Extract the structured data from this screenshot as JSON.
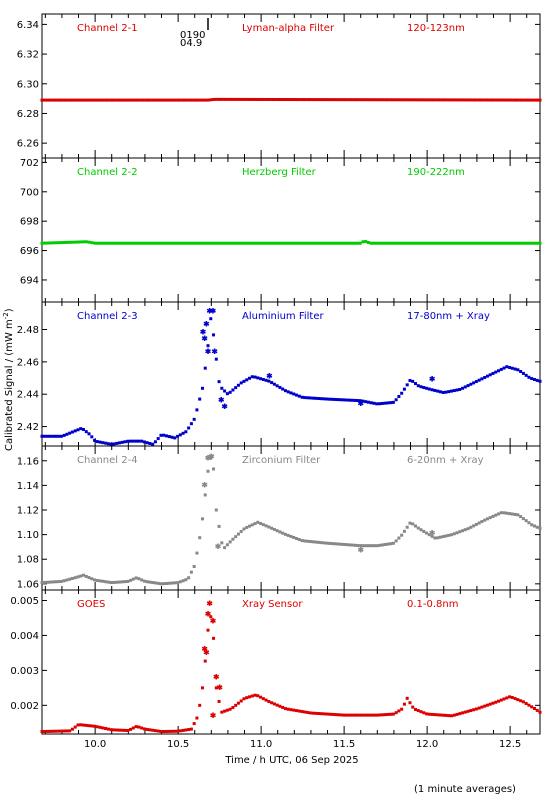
{
  "figure": {
    "ylabel": "Calibrated Signal / (mW m",
    "ylabel_sup": "-2",
    "ylabel_close": ")",
    "xlabel": "Time / h UTC, 06 Sep 2025",
    "footnote": "(1 minute averages)",
    "marker_label_1": "0190",
    "marker_label_2": "04.9",
    "xlim": [
      9.68,
      12.68
    ],
    "x_ticks": [
      "10.0",
      "10.5",
      "11.0",
      "11.5",
      "12.0",
      "12.5"
    ]
  },
  "chart_data": [
    {
      "type": "scatter",
      "panel": 1,
      "channel": "Channel 2-1",
      "filter": "Lyman-alpha Filter",
      "band": "120-123nm",
      "color": "#dd0000",
      "ylim": [
        6.25,
        6.347
      ],
      "y_ticks": [
        "6.26",
        "6.28",
        "6.30",
        "6.32",
        "6.34"
      ],
      "trace": [
        [
          9.68,
          6.289
        ],
        [
          10.68,
          6.289
        ],
        [
          10.72,
          6.2895
        ],
        [
          12.68,
          6.289
        ]
      ]
    },
    {
      "type": "scatter",
      "panel": 2,
      "channel": "Channel 2-2",
      "filter": "Herzberg Filter",
      "band": "190-222nm",
      "color": "#00cc00",
      "ylim": [
        692.5,
        702.3
      ],
      "y_ticks": [
        "694",
        "696",
        "698",
        "700",
        "702"
      ],
      "trace": [
        [
          9.68,
          696.5
        ],
        [
          9.95,
          696.6
        ],
        [
          10.0,
          696.5
        ],
        [
          11.6,
          696.5
        ],
        [
          11.62,
          696.65
        ],
        [
          11.66,
          696.5
        ],
        [
          12.68,
          696.5
        ]
      ]
    },
    {
      "type": "scatter",
      "panel": 3,
      "channel": "Channel 2-3",
      "filter": "Aluminium Filter",
      "band": "17-80nm + Xray",
      "color": "#0000cc",
      "ylim": [
        2.408,
        2.497
      ],
      "y_ticks": [
        "2.42",
        "2.44",
        "2.46",
        "2.48"
      ],
      "trace": [
        [
          9.68,
          2.414
        ],
        [
          9.8,
          2.414
        ],
        [
          9.92,
          2.419
        ],
        [
          9.97,
          2.415
        ],
        [
          10.0,
          2.411
        ],
        [
          10.1,
          2.409
        ],
        [
          10.2,
          2.411
        ],
        [
          10.28,
          2.411
        ],
        [
          10.35,
          2.409
        ],
        [
          10.4,
          2.415
        ],
        [
          10.48,
          2.413
        ],
        [
          10.55,
          2.417
        ],
        [
          10.6,
          2.425
        ],
        [
          10.65,
          2.445
        ],
        [
          10.68,
          2.47
        ],
        [
          10.7,
          2.49
        ],
        [
          10.72,
          2.47
        ],
        [
          10.75,
          2.445
        ],
        [
          10.8,
          2.44
        ],
        [
          10.88,
          2.447
        ],
        [
          10.95,
          2.451
        ],
        [
          11.05,
          2.448
        ],
        [
          11.15,
          2.442
        ],
        [
          11.25,
          2.438
        ],
        [
          11.4,
          2.437
        ],
        [
          11.6,
          2.436
        ],
        [
          11.7,
          2.434
        ],
        [
          11.8,
          2.435
        ],
        [
          11.85,
          2.441
        ],
        [
          11.9,
          2.449
        ],
        [
          11.95,
          2.445
        ],
        [
          12.02,
          2.443
        ],
        [
          12.1,
          2.441
        ],
        [
          12.2,
          2.443
        ],
        [
          12.3,
          2.448
        ],
        [
          12.4,
          2.453
        ],
        [
          12.48,
          2.457
        ],
        [
          12.55,
          2.455
        ],
        [
          12.62,
          2.45
        ],
        [
          12.68,
          2.448
        ]
      ],
      "outliers": [
        [
          10.65,
          2.478
        ],
        [
          10.67,
          2.483
        ],
        [
          10.69,
          2.491
        ],
        [
          10.71,
          2.491
        ],
        [
          10.66,
          2.474
        ],
        [
          10.68,
          2.466
        ],
        [
          10.72,
          2.466
        ],
        [
          10.76,
          2.436
        ],
        [
          10.78,
          2.432
        ],
        [
          11.05,
          2.451
        ],
        [
          11.6,
          2.434
        ],
        [
          12.03,
          2.449
        ]
      ]
    },
    {
      "type": "scatter",
      "panel": 4,
      "channel": "Channel 2-4",
      "filter": "Zirconium Filter",
      "band": "6-20nm + Xray",
      "color": "#888888",
      "ylim": [
        1.055,
        1.172
      ],
      "y_ticks": [
        "1.06",
        "1.08",
        "1.10",
        "1.12",
        "1.14",
        "1.16"
      ],
      "trace": [
        [
          9.68,
          1.061
        ],
        [
          9.8,
          1.062
        ],
        [
          9.88,
          1.065
        ],
        [
          9.93,
          1.067
        ],
        [
          10.0,
          1.063
        ],
        [
          10.1,
          1.061
        ],
        [
          10.2,
          1.062
        ],
        [
          10.25,
          1.065
        ],
        [
          10.3,
          1.062
        ],
        [
          10.4,
          1.06
        ],
        [
          10.5,
          1.061
        ],
        [
          10.56,
          1.064
        ],
        [
          10.6,
          1.075
        ],
        [
          10.64,
          1.105
        ],
        [
          10.67,
          1.14
        ],
        [
          10.69,
          1.163
        ],
        [
          10.71,
          1.16
        ],
        [
          10.73,
          1.12
        ],
        [
          10.77,
          1.088
        ],
        [
          10.82,
          1.095
        ],
        [
          10.9,
          1.105
        ],
        [
          10.98,
          1.11
        ],
        [
          11.05,
          1.106
        ],
        [
          11.15,
          1.1
        ],
        [
          11.25,
          1.095
        ],
        [
          11.4,
          1.093
        ],
        [
          11.5,
          1.092
        ],
        [
          11.6,
          1.091
        ],
        [
          11.7,
          1.091
        ],
        [
          11.8,
          1.093
        ],
        [
          11.85,
          1.1
        ],
        [
          11.9,
          1.11
        ],
        [
          11.95,
          1.105
        ],
        [
          12.05,
          1.097
        ],
        [
          12.15,
          1.1
        ],
        [
          12.25,
          1.105
        ],
        [
          12.35,
          1.112
        ],
        [
          12.45,
          1.118
        ],
        [
          12.55,
          1.116
        ],
        [
          12.63,
          1.108
        ],
        [
          12.68,
          1.105
        ]
      ],
      "outliers": [
        [
          10.66,
          1.14
        ],
        [
          10.68,
          1.162
        ],
        [
          10.7,
          1.163
        ],
        [
          10.74,
          1.09
        ],
        [
          11.6,
          1.087
        ],
        [
          12.03,
          1.101
        ]
      ]
    },
    {
      "type": "scatter",
      "panel": 5,
      "channel": "GOES",
      "filter": "Xray Sensor",
      "band": "0.1-0.8nm",
      "color": "#dd0000",
      "ylim": [
        0.00118,
        0.0053
      ],
      "y_ticks": [
        "0.002",
        "0.003",
        "0.004",
        "0.005"
      ],
      "trace": [
        [
          9.68,
          0.00125
        ],
        [
          9.85,
          0.00127
        ],
        [
          9.9,
          0.00145
        ],
        [
          10.0,
          0.0014
        ],
        [
          10.1,
          0.0013
        ],
        [
          10.2,
          0.00128
        ],
        [
          10.25,
          0.0014
        ],
        [
          10.3,
          0.00132
        ],
        [
          10.4,
          0.00125
        ],
        [
          10.5,
          0.00126
        ],
        [
          10.58,
          0.00132
        ],
        [
          10.62,
          0.0017
        ],
        [
          10.65,
          0.0026
        ],
        [
          10.67,
          0.0036
        ],
        [
          10.69,
          0.0047
        ],
        [
          10.71,
          0.0042
        ],
        [
          10.73,
          0.0025
        ],
        [
          10.76,
          0.0018
        ],
        [
          10.82,
          0.0019
        ],
        [
          10.9,
          0.0022
        ],
        [
          10.97,
          0.0023
        ],
        [
          11.05,
          0.0021
        ],
        [
          11.15,
          0.0019
        ],
        [
          11.3,
          0.00178
        ],
        [
          11.5,
          0.00172
        ],
        [
          11.7,
          0.00172
        ],
        [
          11.8,
          0.00175
        ],
        [
          11.85,
          0.0019
        ],
        [
          11.88,
          0.0022
        ],
        [
          11.92,
          0.0019
        ],
        [
          12.0,
          0.00175
        ],
        [
          12.15,
          0.0017
        ],
        [
          12.3,
          0.0019
        ],
        [
          12.42,
          0.0021
        ],
        [
          12.5,
          0.00225
        ],
        [
          12.58,
          0.0021
        ],
        [
          12.65,
          0.0019
        ],
        [
          12.68,
          0.0018
        ]
      ],
      "outliers": [
        [
          10.69,
          0.0049
        ],
        [
          10.68,
          0.0046
        ],
        [
          10.71,
          0.0044
        ],
        [
          10.66,
          0.0036
        ],
        [
          10.67,
          0.0035
        ],
        [
          10.73,
          0.0028
        ],
        [
          10.75,
          0.0025
        ],
        [
          10.71,
          0.0017
        ]
      ]
    }
  ]
}
